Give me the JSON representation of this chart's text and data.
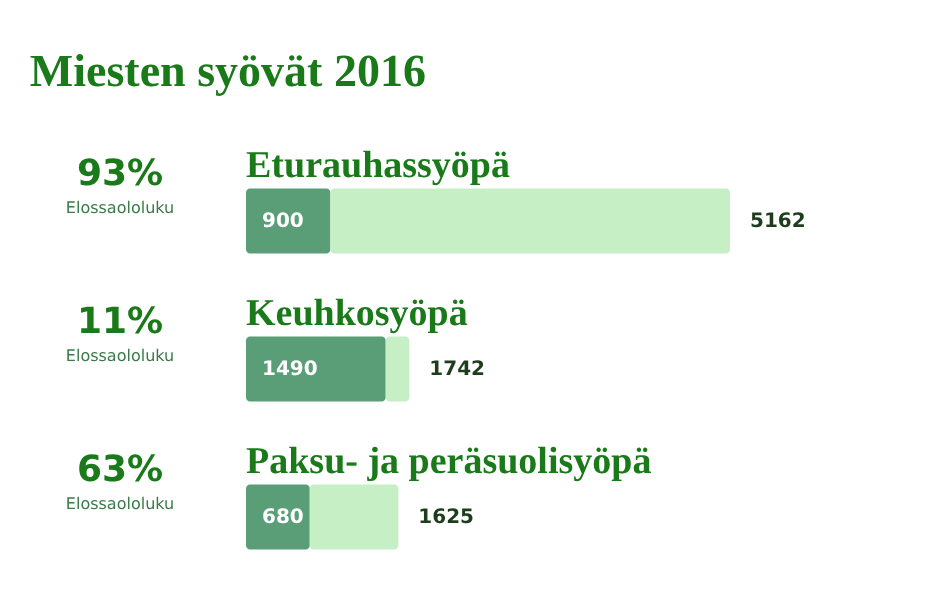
{
  "chart_data": {
    "type": "bar",
    "title": "Miesten syövät 2016",
    "orientation": "horizontal",
    "stacked": true,
    "categories": [
      "Eturauhassyöpä",
      "Keuhkosyöpä",
      "Paksu- ja peräsuolisyöpä"
    ],
    "series": [
      {
        "color": "#5a9e78",
        "values": [
          900,
          1490,
          680
        ],
        "value_labels": [
          "900",
          "1490",
          "680"
        ]
      },
      {
        "color": "#c6efc6",
        "values": [
          4262,
          252,
          945
        ]
      }
    ],
    "totals": [
      "5162",
      "1742",
      "1625"
    ],
    "annotations": [
      "93%",
      "Elossaololuku",
      "11%",
      "Elossaololuku",
      "63%",
      "Elossaololuku"
    ]
  }
}
